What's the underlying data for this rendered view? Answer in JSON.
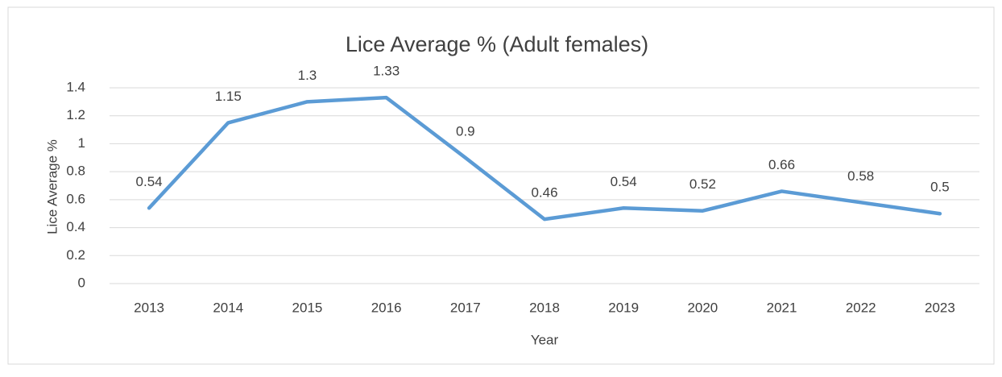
{
  "chart_data": {
    "type": "line",
    "title": "Lice Average % (Adult females)",
    "x_label": "Year",
    "y_label": "Lice Average %",
    "categories": [
      "2013",
      "2014",
      "2015",
      "2016",
      "2017",
      "2018",
      "2019",
      "2020",
      "2021",
      "2022",
      "2023"
    ],
    "series": [
      {
        "name": "Lice Average %",
        "color": "#5b9bd5",
        "values": [
          0.54,
          1.15,
          1.3,
          1.33,
          0.9,
          0.46,
          0.54,
          0.52,
          0.66,
          0.58,
          0.5
        ]
      }
    ],
    "ylim": [
      0,
      1.4
    ],
    "yticks": [
      0,
      0.2,
      0.4,
      0.6,
      0.8,
      1,
      1.2,
      1.4
    ],
    "grid": true
  }
}
